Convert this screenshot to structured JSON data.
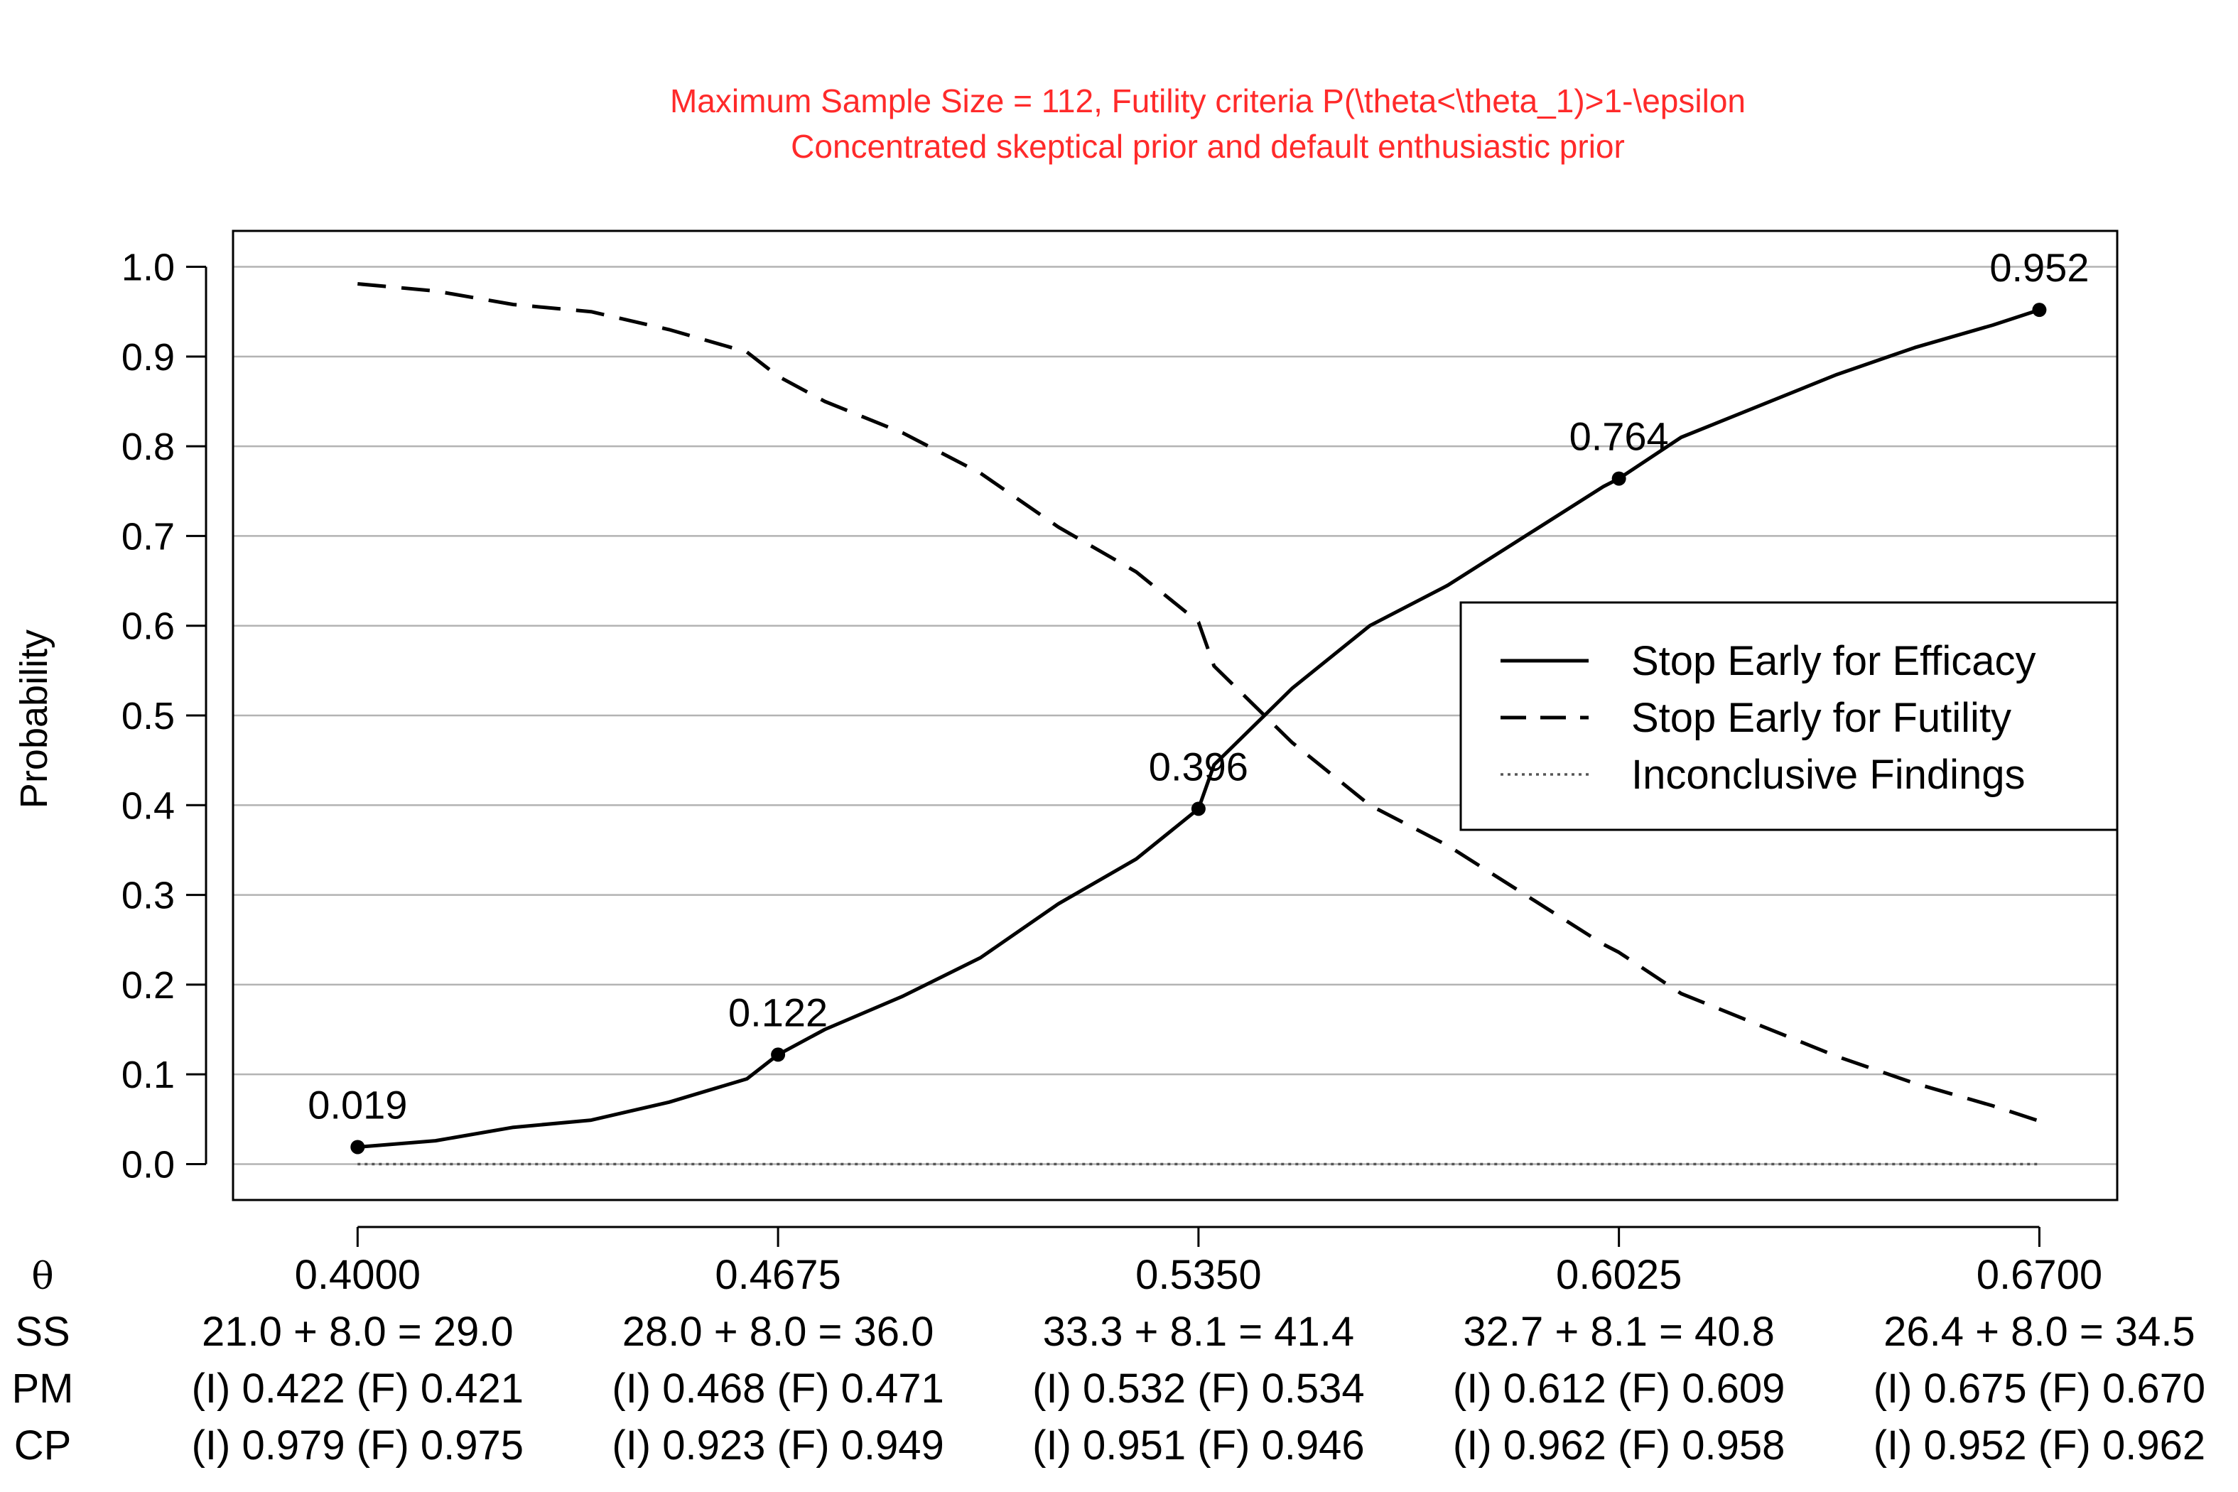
{
  "chart_data": {
    "type": "line",
    "title": "Maximum Sample Size = 112, Futility criteria P(\\theta<\\theta_1)>1-\\epsilon",
    "subtitle": "Concentrated skeptical prior and default enthusiastic prior",
    "ylabel": "Probability",
    "ylim": [
      -0.04,
      1.04
    ],
    "xlim": [
      0.38,
      0.6825
    ],
    "yticks": [
      "0.0",
      "0.1",
      "0.2",
      "0.3",
      "0.4",
      "0.5",
      "0.6",
      "0.7",
      "0.8",
      "0.9",
      "1.0"
    ],
    "grid": true,
    "legend_position": "right",
    "x": [
      0.4,
      0.4125,
      0.425,
      0.4375,
      0.45,
      0.4625,
      0.4675,
      0.475,
      0.4875,
      0.5,
      0.5125,
      0.525,
      0.535,
      0.5375,
      0.55,
      0.5625,
      0.575,
      0.5875,
      0.6,
      0.6025,
      0.6125,
      0.625,
      0.6375,
      0.65,
      0.6625,
      0.67
    ],
    "series": [
      {
        "name": "Stop Early for Efficacy",
        "style": "solid",
        "values": [
          0.019,
          0.026,
          0.041,
          0.049,
          0.069,
          0.095,
          0.122,
          0.15,
          0.187,
          0.23,
          0.29,
          0.34,
          0.396,
          0.445,
          0.53,
          0.6,
          0.645,
          0.7,
          0.755,
          0.764,
          0.81,
          0.845,
          0.88,
          0.91,
          0.935,
          0.952
        ]
      },
      {
        "name": "Stop Early for Futility",
        "style": "dashed",
        "values": [
          0.981,
          0.973,
          0.958,
          0.95,
          0.93,
          0.905,
          0.878,
          0.85,
          0.815,
          0.77,
          0.71,
          0.66,
          0.604,
          0.555,
          0.47,
          0.4,
          0.355,
          0.3,
          0.245,
          0.236,
          0.19,
          0.155,
          0.12,
          0.09,
          0.065,
          0.048
        ]
      },
      {
        "name": "Inconclusive Findings",
        "style": "dotted",
        "values": [
          0,
          0,
          0,
          0,
          0,
          0,
          0,
          0,
          0,
          0,
          0,
          0,
          0,
          0,
          0,
          0,
          0,
          0,
          0,
          0,
          0,
          0,
          0,
          0,
          0,
          0
        ]
      }
    ],
    "highlighted_points": [
      {
        "x": 0.4,
        "y": 0.019,
        "label": "0.019"
      },
      {
        "x": 0.4675,
        "y": 0.122,
        "label": "0.122"
      },
      {
        "x": 0.535,
        "y": 0.396,
        "label": "0.396"
      },
      {
        "x": 0.6025,
        "y": 0.764,
        "label": "0.764"
      },
      {
        "x": 0.67,
        "y": 0.952,
        "label": "0.952"
      }
    ],
    "table": {
      "row_labels": [
        "θ",
        "SS",
        "PM",
        "CP"
      ],
      "columns": [
        {
          "x": 0.4,
          "theta": "0.4000",
          "ss": "21.0 + 8.0 = 29.0",
          "pm": "(I) 0.422 (F) 0.421",
          "cp": "(I) 0.979 (F) 0.975"
        },
        {
          "x": 0.4675,
          "theta": "0.4675",
          "ss": "28.0 + 8.0 = 36.0",
          "pm": "(I) 0.468 (F) 0.471",
          "cp": "(I) 0.923 (F) 0.949"
        },
        {
          "x": 0.535,
          "theta": "0.5350",
          "ss": "33.3 + 8.1 = 41.4",
          "pm": "(I) 0.532 (F) 0.534",
          "cp": "(I) 0.951 (F) 0.946"
        },
        {
          "x": 0.6025,
          "theta": "0.6025",
          "ss": "32.7 + 8.1 = 40.8",
          "pm": "(I) 0.612 (F) 0.609",
          "cp": "(I) 0.962 (F) 0.958"
        },
        {
          "x": 0.67,
          "theta": "0.6700",
          "ss": "26.4 + 8.0 = 34.5",
          "pm": "(I) 0.675 (F) 0.670",
          "cp": "(I) 0.952 (F) 0.962"
        }
      ]
    }
  }
}
